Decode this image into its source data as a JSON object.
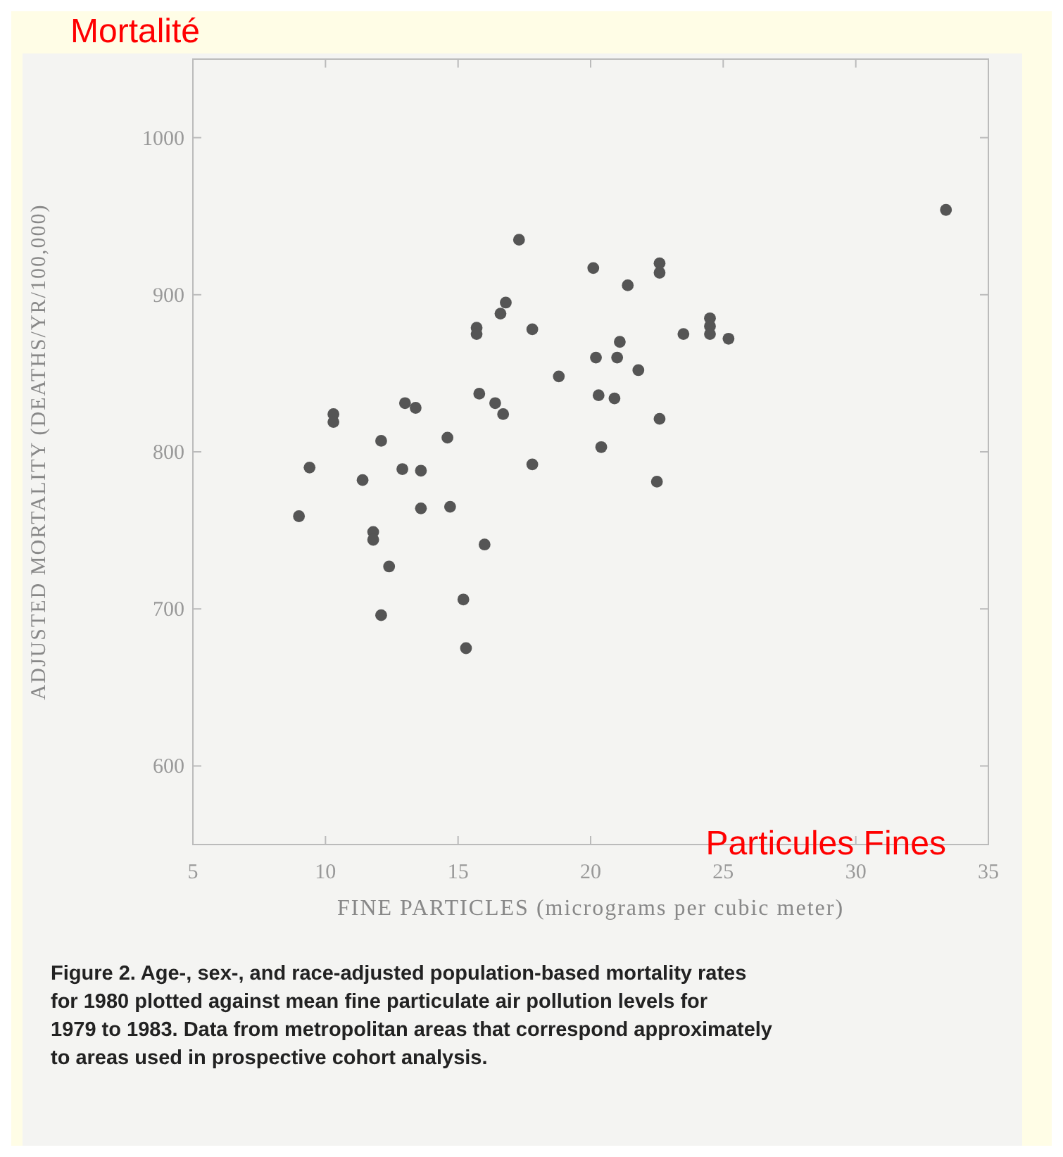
{
  "chart_data": {
    "type": "scatter",
    "title": "Mortalité",
    "xlabel": "FINE PARTICLES (micrograms per cubic meter)",
    "ylabel": "ADJUSTED MORTALITY (DEATHS/YR/100,000)",
    "annotations": [
      "Particules Fines",
      "Figure 2. Age-, sex-, and race-adjusted population-based mortality rates for 1980 plotted against mean fine particulate air pollution levels for 1979 to 1983. Data from metropolitan areas that correspond approximately to areas used in prospective cohort analysis."
    ],
    "xlim": [
      5,
      35
    ],
    "xticks": [
      5,
      10,
      15,
      20,
      25,
      30,
      35
    ],
    "ylim": [
      550,
      1050
    ],
    "yticks": [
      600,
      700,
      800,
      900,
      1000
    ],
    "grid": false,
    "marker": "circle",
    "series": [
      {
        "color": "#555555",
        "x": [
          33.4,
          17.3,
          20.1,
          21.4,
          22.6,
          22.6,
          16.8,
          16.6,
          15.7,
          15.7,
          17.8,
          23.5,
          24.5,
          24.5,
          24.5,
          25.2,
          21.1,
          20.2,
          21.0,
          21.8,
          18.8,
          15.8,
          20.3,
          20.9,
          16.4,
          16.7,
          13.0,
          13.4,
          10.3,
          10.3,
          22.6,
          14.6,
          12.1,
          20.4,
          9.4,
          12.9,
          13.6,
          17.8,
          11.4,
          22.5,
          9.0,
          13.6,
          14.7,
          11.8,
          11.8,
          16.0,
          12.4,
          15.2,
          12.1,
          15.3
        ],
        "values": [
          954,
          935,
          917,
          906,
          920,
          914,
          895,
          888,
          879,
          875,
          878,
          875,
          885,
          880,
          875,
          872,
          870,
          860,
          860,
          852,
          848,
          837,
          836,
          834,
          831,
          824,
          831,
          828,
          824,
          819,
          821,
          809,
          807,
          803,
          790,
          789,
          788,
          792,
          782,
          781,
          759,
          764,
          765,
          749,
          744,
          741,
          727,
          706,
          696,
          675
        ]
      }
    ]
  }
}
